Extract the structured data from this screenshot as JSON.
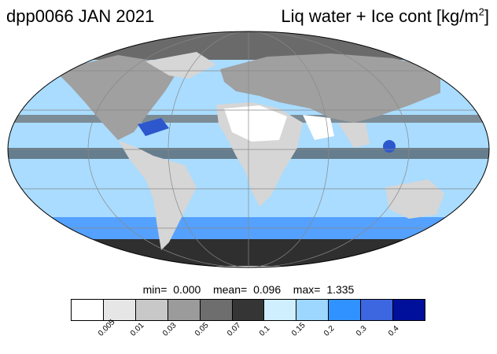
{
  "header": {
    "left_title": "dpp0066 JAN 2021",
    "right_title": "Liq water + Ice cont [kg/m",
    "right_title_sup": "2",
    "right_title_close": "]"
  },
  "stats": {
    "min_label": "min=",
    "min_value": "0.000",
    "mean_label": "mean=",
    "mean_value": "0.096",
    "max_label": "max=",
    "max_value": "1.335"
  },
  "colorbar": {
    "colors": [
      "#ffffff",
      "#e6e6e6",
      "#c8c8c8",
      "#9b9b9b",
      "#6e6e6e",
      "#353535",
      "#cfefff",
      "#9dd6ff",
      "#2f92ff",
      "#3d67e0",
      "#00109a"
    ],
    "labels": [
      "0.005",
      "0.01",
      "0.03",
      "0.05",
      "0.07",
      "0.1",
      "0.15",
      "0.2",
      "0.3",
      "0.4"
    ]
  },
  "map": {
    "projection": "mollweide",
    "colors": {
      "ocean": "#a9dcff",
      "ocean_light": "#d2f0ff",
      "ocean_mid": "#3a8eff",
      "ocean_deep": "#2d57cc",
      "cloud_dark": "#2f2f2f",
      "cloud_mid": "#6a6a6a",
      "land_grey": "#a0a0a0",
      "land_light": "#d6d6d6",
      "desert": "#ffffff",
      "grid": "#888888",
      "coast": "#333333"
    }
  }
}
